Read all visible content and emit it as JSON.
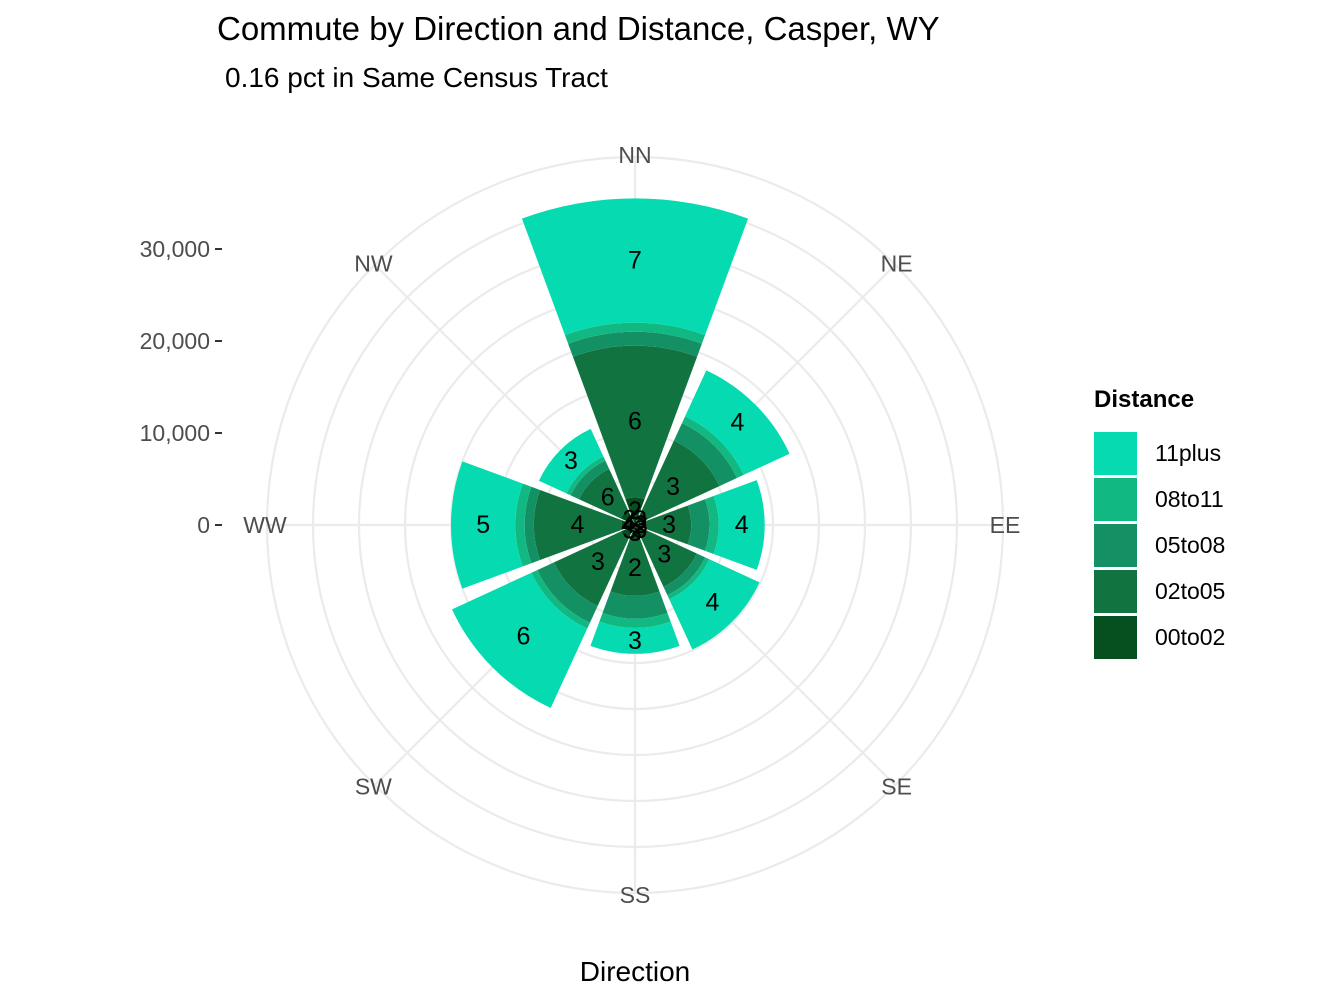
{
  "chart_data": {
    "type": "bar",
    "coordinate_system": "polar",
    "title": "Commute by Direction and Distance, Casper, WY",
    "subtitle": "0.16 pct in Same Census Tract",
    "xlabel": "Direction",
    "ylabel": "",
    "categories": [
      "NN",
      "NE",
      "EE",
      "SE",
      "SS",
      "SW",
      "WW",
      "NW"
    ],
    "y_ticks": [
      "0",
      "10,000",
      "20,000",
      "30,000"
    ],
    "ylim": [
      0,
      40000
    ],
    "stacking": "stacked",
    "grid": true,
    "legend": {
      "title": "Distance",
      "position": "right"
    },
    "series": [
      {
        "name": "00to02",
        "color": "#05501e",
        "values": [
          3000,
          1600,
          1300,
          1600,
          1700,
          1700,
          1500,
          1700
        ],
        "labels": [
          "2",
          "3",
          "3",
          "3",
          "3",
          "3",
          "4",
          "2"
        ]
      },
      {
        "name": "02to05",
        "color": "#117440",
        "values": [
          16500,
          8500,
          4800,
          5800,
          6000,
          8000,
          9500,
          5000
        ],
        "labels": [
          "6",
          "3",
          "3",
          "3",
          "2",
          "3",
          "4",
          "6"
        ]
      },
      {
        "name": "05to08",
        "color": "#149164",
        "values": [
          1500,
          2100,
          2000,
          1000,
          2500,
          2000,
          1000,
          1000
        ],
        "labels": [
          "",
          "",
          "",
          "",
          "",
          "",
          "",
          ""
        ]
      },
      {
        "name": "08to11",
        "color": "#12b882",
        "values": [
          1000,
          800,
          1000,
          500,
          1000,
          700,
          1000,
          500
        ],
        "labels": [
          "",
          "",
          "",
          "",
          "",
          "",
          "",
          ""
        ]
      },
      {
        "name": "11plus",
        "color": "#06dab0",
        "values": [
          13500,
          5500,
          5000,
          6000,
          2800,
          9500,
          7000,
          3300
        ],
        "labels": [
          "7",
          "4",
          "4",
          "4",
          "3",
          "6",
          "5",
          "3"
        ]
      }
    ]
  }
}
